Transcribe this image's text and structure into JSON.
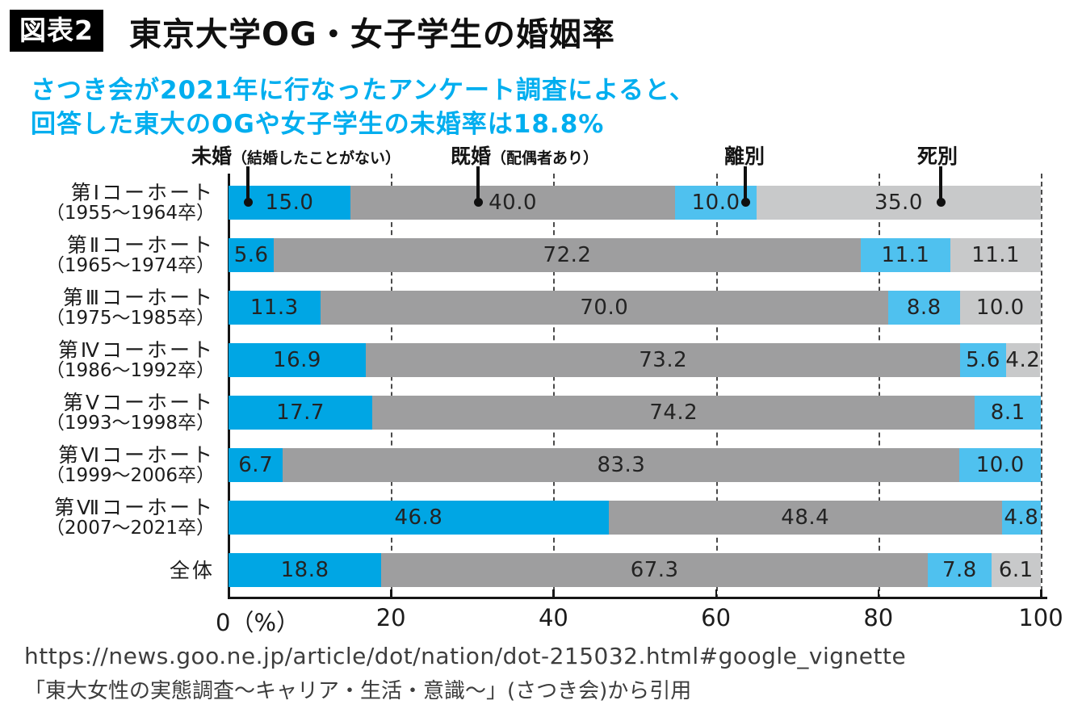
{
  "header": {
    "badge": "図表2",
    "title": "東京大学OG・女子学生の婚姻率",
    "subtitle_line1": "さつき会が2021年に行なったアンケート調査によると、",
    "subtitle_line2": "回答した東大のOGや女子学生の未婚率は18.8%",
    "subtitle_color": "#00AEEF"
  },
  "chart_data": {
    "type": "bar",
    "stacked": true,
    "orientation": "horizontal",
    "unit": "%",
    "xlim": [
      0,
      100
    ],
    "grid": "dashed-vertical",
    "legend_position": "top",
    "x_ticks": [
      "0（%）",
      "20",
      "40",
      "60",
      "80",
      "100"
    ],
    "categories": [
      {
        "name": "第Ⅰコーホート",
        "years": "（1955〜1964卒）"
      },
      {
        "name": "第Ⅱコーホート",
        "years": "（1965〜1974卒）"
      },
      {
        "name": "第Ⅲコーホート",
        "years": "（1975〜1985卒）"
      },
      {
        "name": "第Ⅳコーホート",
        "years": "（1986〜1992卒）"
      },
      {
        "name": "第Ⅴコーホート",
        "years": "（1993〜1998卒）"
      },
      {
        "name": "第Ⅵコーホート",
        "years": "（1999〜2006卒）"
      },
      {
        "name": "第Ⅶコーホート",
        "years": "（2007〜2021卒）"
      },
      {
        "name": "全体",
        "years": ""
      }
    ],
    "series": [
      {
        "name": "未婚",
        "note": "（結婚したことがない）",
        "color": "#00A6E4",
        "values": [
          15.0,
          5.6,
          11.3,
          16.9,
          17.7,
          6.7,
          46.8,
          18.8
        ]
      },
      {
        "name": "既婚",
        "note": "（配偶者あり）",
        "color": "#9E9E9F",
        "values": [
          40.0,
          72.2,
          70.0,
          73.2,
          74.2,
          83.3,
          48.4,
          67.3
        ]
      },
      {
        "name": "離別",
        "note": "",
        "color": "#4FC1EF",
        "values": [
          10.0,
          11.1,
          8.8,
          5.6,
          8.1,
          10.0,
          4.8,
          7.8
        ]
      },
      {
        "name": "死別",
        "note": "",
        "color": "#C8C9CA",
        "values": [
          35.0,
          11.1,
          10.0,
          4.2,
          0,
          0,
          0,
          6.1
        ]
      }
    ]
  },
  "footer": {
    "line1": "https://news.goo.ne.jp/article/dot/nation/dot-215032.html#google_vignette",
    "line2": "「東大女性の実態調査〜キャリア・生活・意識〜」(さつき会)から引用"
  }
}
